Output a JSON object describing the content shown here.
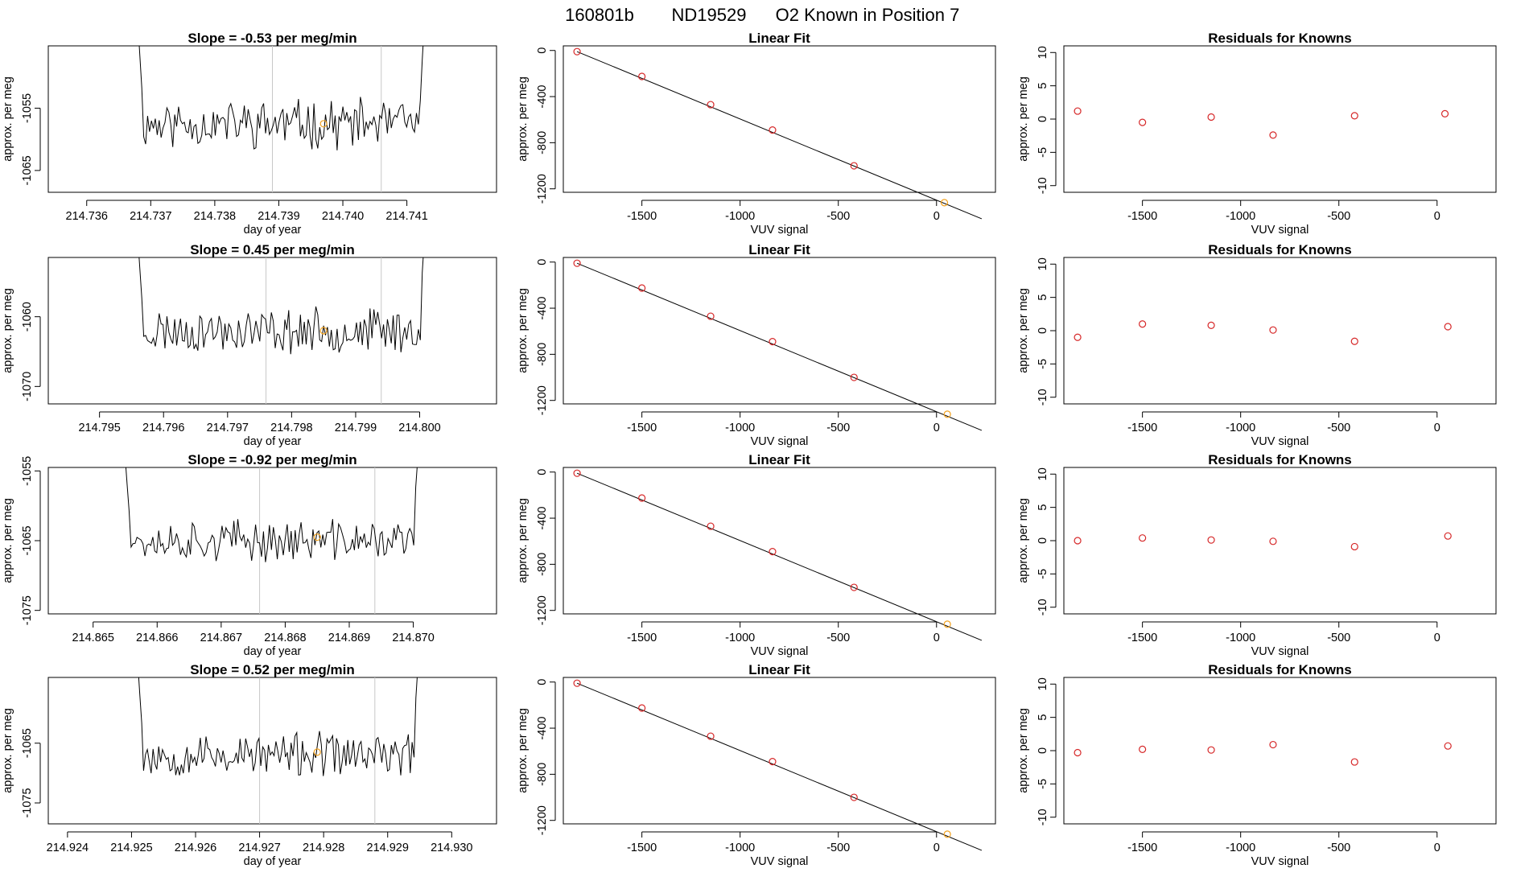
{
  "figure": {
    "title_parts": [
      "160801b",
      "ND19529",
      "O2 Known in Position  7"
    ]
  },
  "colors": {
    "line": "#000000",
    "point_red": "#d62728",
    "point_orange": "#f2a11d",
    "guide": "#c8c8c8"
  },
  "chart_data": [
    {
      "row": 1,
      "time_series": {
        "type": "line",
        "title": "Slope =  -0.53  per meg/min",
        "xlabel": "day of year",
        "ylabel": "approx. per meg",
        "xlim": [
          214.7354,
          214.7424
        ],
        "ylim": [
          -1068.5,
          -1045.0
        ],
        "xticks": [
          214.736,
          214.737,
          214.738,
          214.739,
          214.74,
          214.741
        ],
        "xtick_labels": [
          "214.736",
          "214.737",
          "214.738",
          "214.739",
          "214.740",
          "214.741"
        ],
        "yticks": [
          -1055,
          -1065
        ],
        "ytick_labels": [
          "-1055",
          "-1065"
        ],
        "guides": [
          214.7389,
          214.7406
        ],
        "marker": {
          "x": 214.7397,
          "y": -1057.5
        },
        "trace": {
          "start": 214.7368,
          "end": 214.7413,
          "mean": -1057.5,
          "amp": 3.2,
          "seed": 11
        }
      },
      "linear_fit": {
        "type": "scatter",
        "title": "Linear Fit",
        "xlabel": "VUV signal",
        "ylabel": "approx. per meg",
        "xlim": [
          -1900,
          300
        ],
        "ylim": [
          -1230,
          40
        ],
        "xticks": [
          -1500,
          -1000,
          -500,
          0
        ],
        "xtick_labels": [
          "-1500",
          "-1000",
          "-500",
          "0"
        ],
        "yticks": [
          0,
          -400,
          -800,
          -1200
        ],
        "ytick_labels": [
          "0",
          "-400",
          "-800",
          "-1200"
        ],
        "points_x": [
          -1830,
          -1500,
          -1150,
          -835,
          -420,
          40
        ],
        "points_y": [
          -10,
          -225,
          -470,
          -690,
          -1000,
          -1320
        ],
        "line": [
          [
            -1830,
            -10
          ],
          [
            230,
            -1460
          ]
        ],
        "highlight_last": true
      },
      "residuals": {
        "type": "scatter",
        "title": "Residuals for Knowns",
        "xlabel": "VUV signal",
        "ylabel": "approx. per meg",
        "xlim": [
          -1900,
          300
        ],
        "ylim": [
          -11,
          11
        ],
        "xticks": [
          -1500,
          -1000,
          -500,
          0
        ],
        "xtick_labels": [
          "-1500",
          "-1000",
          "-500",
          "0"
        ],
        "yticks": [
          10,
          5,
          0,
          -5,
          -10
        ],
        "ytick_labels": [
          "10",
          "5",
          "0",
          "-5",
          "-10"
        ],
        "points_x": [
          -1830,
          -1500,
          -1150,
          -835,
          -420,
          40
        ],
        "points_y": [
          1.2,
          -0.5,
          0.3,
          -2.4,
          0.5,
          0.8
        ]
      }
    },
    {
      "row": 2,
      "time_series": {
        "type": "line",
        "title": "Slope =  0.45  per meg/min",
        "xlabel": "day of year",
        "ylabel": "approx. per meg",
        "xlim": [
          214.7942,
          214.8012
        ],
        "ylim": [
          -1072.5,
          -1051.5
        ],
        "xticks": [
          214.795,
          214.796,
          214.797,
          214.798,
          214.799,
          214.8
        ],
        "xtick_labels": [
          "214.795",
          "214.796",
          "214.797",
          "214.798",
          "214.799",
          "214.800"
        ],
        "yticks": [
          -1060,
          -1070
        ],
        "ytick_labels": [
          "-1060",
          "-1070"
        ],
        "guides": [
          214.7976,
          214.7994
        ],
        "marker": {
          "x": 214.7985,
          "y": -1062.0
        },
        "trace": {
          "start": 214.7956,
          "end": 214.8001,
          "mean": -1062.0,
          "amp": 2.6,
          "seed": 23
        }
      },
      "linear_fit": {
        "type": "scatter",
        "title": "Linear Fit",
        "xlabel": "VUV signal",
        "ylabel": "approx. per meg",
        "xlim": [
          -1900,
          300
        ],
        "ylim": [
          -1230,
          40
        ],
        "xticks": [
          -1500,
          -1000,
          -500,
          0
        ],
        "xtick_labels": [
          "-1500",
          "-1000",
          "-500",
          "0"
        ],
        "yticks": [
          0,
          -400,
          -800,
          -1200
        ],
        "ytick_labels": [
          "0",
          "-400",
          "-800",
          "-1200"
        ],
        "points_x": [
          -1830,
          -1500,
          -1150,
          -835,
          -420,
          55
        ],
        "points_y": [
          -10,
          -225,
          -470,
          -690,
          -1000,
          -1320
        ],
        "line": [
          [
            -1830,
            -10
          ],
          [
            230,
            -1460
          ]
        ],
        "highlight_last": true
      },
      "residuals": {
        "type": "scatter",
        "title": "Residuals for Knowns",
        "xlabel": "VUV signal",
        "ylabel": "approx. per meg",
        "xlim": [
          -1900,
          300
        ],
        "ylim": [
          -11,
          11
        ],
        "xticks": [
          -1500,
          -1000,
          -500,
          0
        ],
        "xtick_labels": [
          "-1500",
          "-1000",
          "-500",
          "0"
        ],
        "yticks": [
          10,
          5,
          0,
          -5,
          -10
        ],
        "ytick_labels": [
          "10",
          "5",
          "0",
          "-5",
          "-10"
        ],
        "points_x": [
          -1830,
          -1500,
          -1150,
          -835,
          -420,
          55
        ],
        "points_y": [
          -1.0,
          1.0,
          0.8,
          0.1,
          -1.6,
          0.6
        ]
      }
    },
    {
      "row": 3,
      "time_series": {
        "type": "line",
        "title": "Slope =  -0.92  per meg/min",
        "xlabel": "day of year",
        "ylabel": "approx. per meg",
        "xlim": [
          214.8643,
          214.8713
        ],
        "ylim": [
          -1075.5,
          -1054.5
        ],
        "xticks": [
          214.865,
          214.866,
          214.867,
          214.868,
          214.869,
          214.87
        ],
        "xtick_labels": [
          "214.865",
          "214.866",
          "214.867",
          "214.868",
          "214.869",
          "214.870"
        ],
        "yticks": [
          -1055,
          -1065,
          -1075
        ],
        "ytick_labels": [
          "-1055",
          "-1065",
          "-1075"
        ],
        "guides": [
          214.8676,
          214.8694
        ],
        "marker": {
          "x": 214.8685,
          "y": -1064.5
        },
        "trace": {
          "start": 214.8655,
          "end": 214.8701,
          "mean": -1065.0,
          "amp": 2.4,
          "seed": 37
        }
      },
      "linear_fit": {
        "type": "scatter",
        "title": "Linear Fit",
        "xlabel": "VUV signal",
        "ylabel": "approx. per meg",
        "xlim": [
          -1900,
          300
        ],
        "ylim": [
          -1230,
          40
        ],
        "xticks": [
          -1500,
          -1000,
          -500,
          0
        ],
        "xtick_labels": [
          "-1500",
          "-1000",
          "-500",
          "0"
        ],
        "yticks": [
          0,
          -400,
          -800,
          -1200
        ],
        "ytick_labels": [
          "0",
          "-400",
          "-800",
          "-1200"
        ],
        "points_x": [
          -1830,
          -1500,
          -1150,
          -835,
          -420,
          55
        ],
        "points_y": [
          -10,
          -225,
          -470,
          -690,
          -1000,
          -1320
        ],
        "line": [
          [
            -1830,
            -10
          ],
          [
            230,
            -1460
          ]
        ],
        "highlight_last": true
      },
      "residuals": {
        "type": "scatter",
        "title": "Residuals for Knowns",
        "xlabel": "VUV signal",
        "ylabel": "approx. per meg",
        "xlim": [
          -1900,
          300
        ],
        "ylim": [
          -11,
          11
        ],
        "xticks": [
          -1500,
          -1000,
          -500,
          0
        ],
        "xtick_labels": [
          "-1500",
          "-1000",
          "-500",
          "0"
        ],
        "yticks": [
          10,
          5,
          0,
          -5,
          -10
        ],
        "ytick_labels": [
          "10",
          "5",
          "0",
          "-5",
          "-10"
        ],
        "points_x": [
          -1830,
          -1500,
          -1150,
          -835,
          -420,
          55
        ],
        "points_y": [
          0.0,
          0.4,
          0.1,
          -0.1,
          -0.9,
          0.7
        ]
      }
    },
    {
      "row": 4,
      "time_series": {
        "type": "line",
        "title": "Slope =  0.52  per meg/min",
        "xlabel": "day of year",
        "ylabel": "approx. per meg",
        "xlim": [
          214.9237,
          214.9307
        ],
        "ylim": [
          -1078.5,
          -1054.0
        ],
        "xticks": [
          214.924,
          214.925,
          214.926,
          214.927,
          214.928,
          214.929,
          214.93
        ],
        "xtick_labels": [
          "214.924",
          "214.925",
          "214.926",
          "214.927",
          "214.928",
          "214.929",
          "214.930"
        ],
        "yticks": [
          -1065,
          -1075
        ],
        "ytick_labels": [
          "-1065",
          "-1075"
        ],
        "guides": [
          214.927,
          214.9288
        ],
        "marker": {
          "x": 214.9279,
          "y": -1066.5
        },
        "trace": {
          "start": 214.9251,
          "end": 214.9295,
          "mean": -1067.0,
          "amp": 3.0,
          "seed": 53
        }
      },
      "linear_fit": {
        "type": "scatter",
        "title": "Linear Fit",
        "xlabel": "VUV signal",
        "ylabel": "approx. per meg",
        "xlim": [
          -1900,
          300
        ],
        "ylim": [
          -1230,
          40
        ],
        "xticks": [
          -1500,
          -1000,
          -500,
          0
        ],
        "xtick_labels": [
          "-1500",
          "-1000",
          "-500",
          "0"
        ],
        "yticks": [
          0,
          -400,
          -800,
          -1200
        ],
        "ytick_labels": [
          "0",
          "-400",
          "-800",
          "-1200"
        ],
        "points_x": [
          -1830,
          -1500,
          -1150,
          -835,
          -420,
          55
        ],
        "points_y": [
          -10,
          -225,
          -470,
          -690,
          -1000,
          -1320
        ],
        "line": [
          [
            -1830,
            -10
          ],
          [
            230,
            -1460
          ]
        ],
        "highlight_last": true
      },
      "residuals": {
        "type": "scatter",
        "title": "Residuals for Knowns",
        "xlabel": "VUV signal",
        "ylabel": "approx. per meg",
        "xlim": [
          -1900,
          300
        ],
        "ylim": [
          -11,
          11
        ],
        "xticks": [
          -1500,
          -1000,
          -500,
          0
        ],
        "xtick_labels": [
          "-1500",
          "-1000",
          "-500",
          "0"
        ],
        "yticks": [
          10,
          5,
          0,
          -5,
          -10
        ],
        "ytick_labels": [
          "10",
          "5",
          "0",
          "-5",
          "-10"
        ],
        "points_x": [
          -1830,
          -1500,
          -1150,
          -835,
          -420,
          55
        ],
        "points_y": [
          -0.3,
          0.2,
          0.1,
          0.9,
          -1.7,
          0.7
        ]
      }
    }
  ]
}
